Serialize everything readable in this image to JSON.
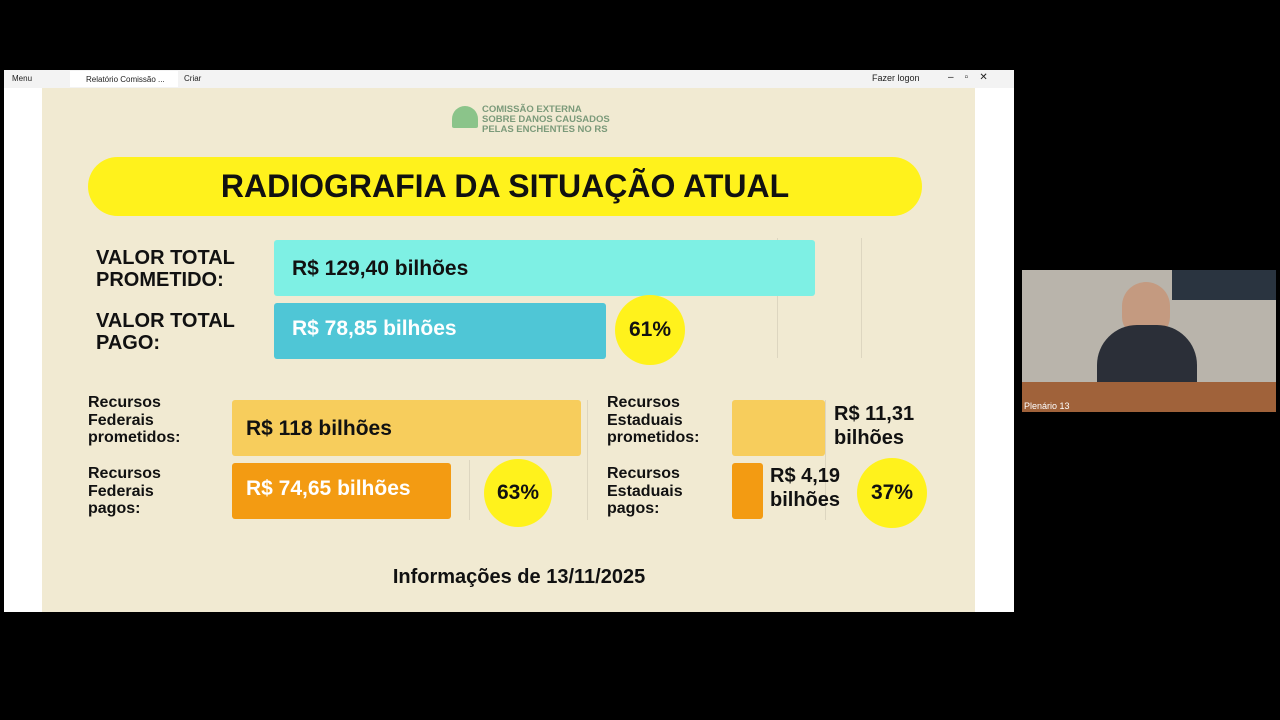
{
  "browser": {
    "menu": "Menu",
    "tab": "Relatório Comissão ...",
    "new_tab": "Criar",
    "login": "Fazer logon"
  },
  "slide": {
    "logo": [
      "COMISSÃO EXTERNA",
      "SOBRE DANOS CAUSADOS",
      "PELAS ENCHENTES NO RS"
    ],
    "title": "RADIOGRAFIA DA SITUAÇÃO ATUAL",
    "total_promised": {
      "label": [
        "VALOR TOTAL",
        "PROMETIDO:"
      ],
      "amount": "R$ 129,40 bilhões"
    },
    "total_paid": {
      "label": [
        "VALOR TOTAL",
        "PAGO:"
      ],
      "amount": "R$ 78,85 bilhões",
      "percent": "61%"
    },
    "federal_promised": {
      "label": [
        "Recursos",
        "Federais",
        "prometidos:"
      ],
      "amount": "R$ 118 bilhões"
    },
    "federal_paid": {
      "label": [
        "Recursos",
        "Federais",
        "pagos:"
      ],
      "amount": "R$ 74,65 bilhões",
      "percent": "63%"
    },
    "state_promised": {
      "label": [
        "Recursos",
        "Estaduais",
        "prometidos:"
      ],
      "amount": [
        "R$ 11,31",
        "bilhões"
      ]
    },
    "state_paid": {
      "label": [
        "Recursos",
        "Estaduais",
        "pagos:"
      ],
      "amount": [
        "R$ 4,19",
        "bilhões"
      ],
      "percent": "37%"
    },
    "footer": "Informações de 13/11/2025"
  },
  "webcam": {
    "caption": "Plenário 13"
  }
}
